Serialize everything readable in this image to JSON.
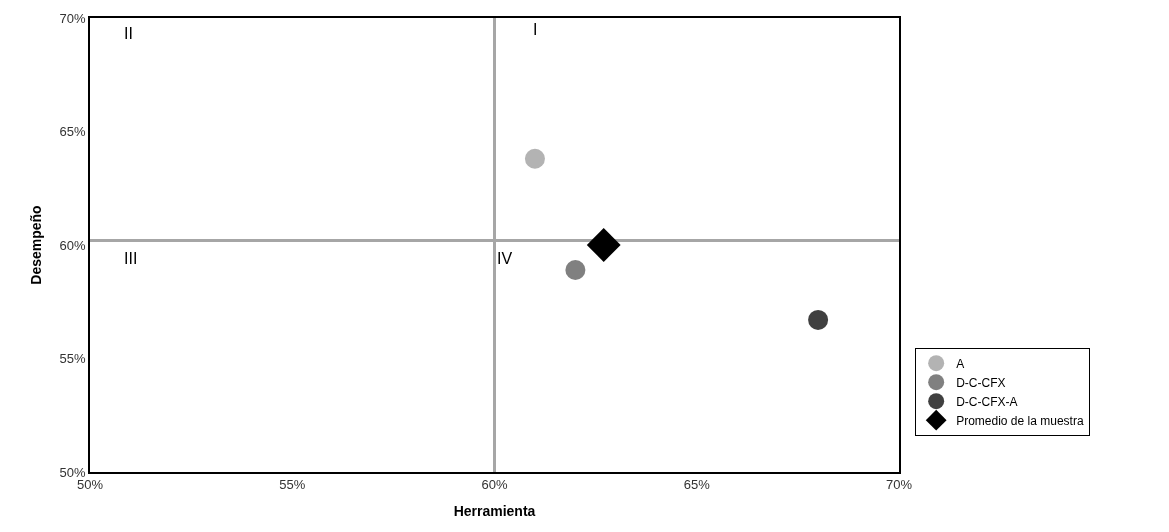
{
  "chart_data": {
    "type": "scatter",
    "xlabel": "Herramienta",
    "ylabel": "Desempeño",
    "xlim": [
      50,
      70
    ],
    "ylim": [
      50,
      70
    ],
    "xticks": [
      {
        "value": 50,
        "label": "50%"
      },
      {
        "value": 55,
        "label": "55%"
      },
      {
        "value": 60,
        "label": "60%"
      },
      {
        "value": 65,
        "label": "65%"
      },
      {
        "value": 70,
        "label": "70%"
      }
    ],
    "yticks": [
      {
        "value": 50,
        "label": "50%"
      },
      {
        "value": 55,
        "label": "55%"
      },
      {
        "value": 60,
        "label": "60%"
      },
      {
        "value": 65,
        "label": "65%"
      },
      {
        "value": 70,
        "label": "70%"
      }
    ],
    "grid": false,
    "legend": "right",
    "series": [
      {
        "name": "A",
        "color": "#b3b3b3",
        "x": [
          61.0
        ],
        "values": [
          63.8
        ],
        "marker": "circle"
      },
      {
        "name": "D-C-CFX",
        "color": "#808080",
        "x": [
          62.0
        ],
        "values": [
          58.9
        ],
        "marker": "circle"
      },
      {
        "name": "D-C-CFX-A",
        "color": "#404040",
        "x": [
          68.0
        ],
        "values": [
          56.7
        ],
        "marker": "circle"
      },
      {
        "name": "Promedio de la muestra",
        "color": "#000000",
        "x": [
          62.7
        ],
        "values": [
          60.0
        ],
        "marker": "diamond"
      }
    ],
    "ref_lines": [
      {
        "axis": "x",
        "value": 60,
        "color": "#a6a6a6"
      },
      {
        "axis": "y",
        "value": 60.2,
        "color": "#a6a6a6"
      }
    ],
    "annotations": [
      "II",
      "I",
      "III",
      "IV"
    ]
  }
}
